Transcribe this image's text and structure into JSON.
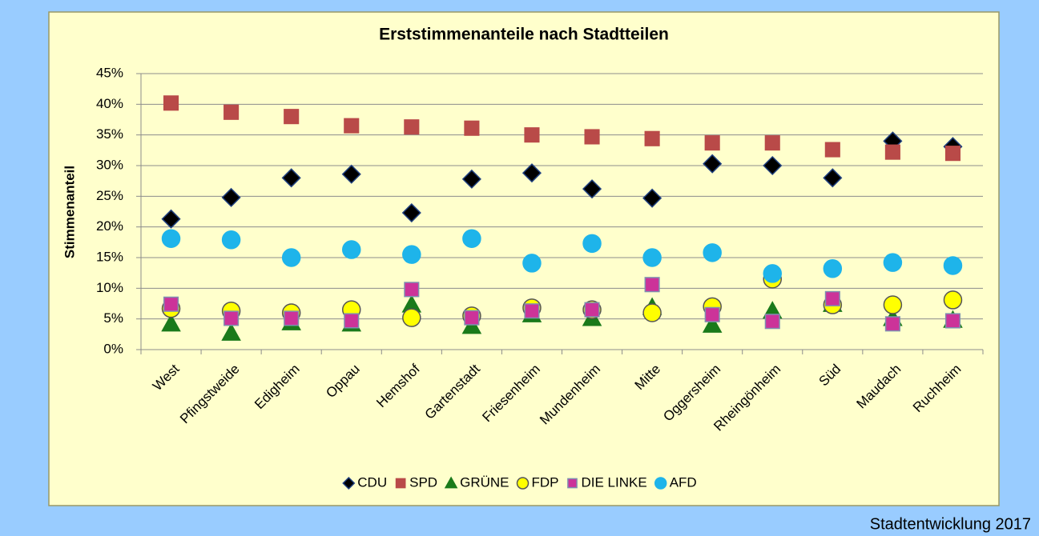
{
  "chart_data": {
    "type": "scatter",
    "title": "Erststimmenanteile nach Stadtteilen",
    "y_label": "Stimmenanteil",
    "footer": "Stadtentwicklung 2017",
    "categories": [
      "West",
      "Pfingstweide",
      "Edigheim",
      "Oppau",
      "Hemshof",
      "Gartenstadt",
      "Friesenheim",
      "Mundenheim",
      "Mitte",
      "Oggersheim",
      "Rheingönheim",
      "Süd",
      "Maudach",
      "Ruchheim"
    ],
    "series": [
      {
        "name": "CDU",
        "color": "#000000",
        "stroke": "#1f3f7f",
        "marker": "diamond",
        "values": [
          21.3,
          24.8,
          28.0,
          28.6,
          22.3,
          27.8,
          28.8,
          26.2,
          24.7,
          30.3,
          30.0,
          28.0,
          34.0,
          33.1
        ]
      },
      {
        "name": "SPD",
        "color": "#b94a48",
        "stroke": "#b94a48",
        "marker": "square",
        "values": [
          40.2,
          38.7,
          38.0,
          36.5,
          36.3,
          36.1,
          35.0,
          34.7,
          34.4,
          33.7,
          33.7,
          32.6,
          32.2,
          32.0
        ]
      },
      {
        "name": "GRÜNE",
        "color": "#1a7a1a",
        "stroke": "#1a7a1a",
        "marker": "triangle",
        "values": [
          4.2,
          2.7,
          4.4,
          4.2,
          7.3,
          3.8,
          5.7,
          5.1,
          6.9,
          4.0,
          6.3,
          7.4,
          5.1,
          4.8
        ]
      },
      {
        "name": "FDP",
        "color": "#ffff00",
        "stroke": "#555555",
        "marker": "circle",
        "values": [
          6.7,
          6.3,
          6.0,
          6.5,
          5.2,
          5.5,
          6.8,
          6.5,
          6.0,
          7.0,
          11.5,
          7.3,
          7.3,
          8.1
        ]
      },
      {
        "name": "DIE LINKE",
        "color": "#cc3399",
        "stroke": "#7f8fb0",
        "marker": "square",
        "values": [
          7.4,
          5.1,
          5.1,
          4.7,
          9.8,
          5.2,
          6.3,
          6.5,
          10.6,
          5.7,
          4.6,
          8.3,
          4.2,
          4.7
        ]
      },
      {
        "name": "AFD",
        "color": "#1eb4ea",
        "stroke": "#1eb4ea",
        "marker": "circle",
        "values": [
          18.1,
          17.9,
          15.0,
          16.3,
          15.5,
          18.1,
          14.1,
          17.3,
          15.0,
          15.8,
          12.4,
          13.2,
          14.2,
          13.7
        ]
      }
    ],
    "ylim": [
      0,
      45
    ],
    "yticks": [
      {
        "value": 0,
        "label": "0%"
      },
      {
        "value": 5,
        "label": "5%"
      },
      {
        "value": 10,
        "label": "10%"
      },
      {
        "value": 15,
        "label": "15%"
      },
      {
        "value": 20,
        "label": "20%"
      },
      {
        "value": 25,
        "label": "25%"
      },
      {
        "value": 30,
        "label": "30%"
      },
      {
        "value": 35,
        "label": "35%"
      },
      {
        "value": 40,
        "label": "40%"
      },
      {
        "value": 45,
        "label": "45%"
      }
    ],
    "grid": true,
    "legend": "bottom"
  }
}
